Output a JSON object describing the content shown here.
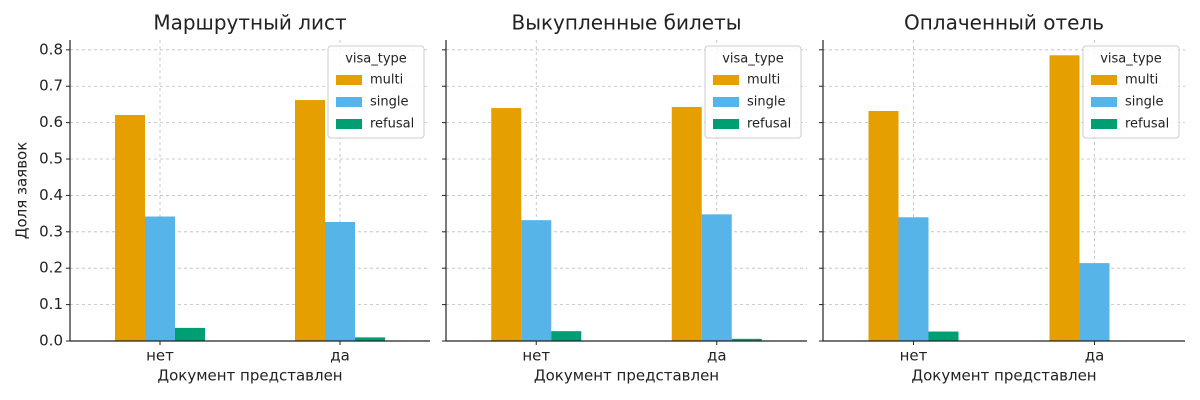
{
  "chart_data": [
    {
      "type": "bar",
      "title": "Маршрутный лист",
      "xlabel": "Документ представлен",
      "ylabel": "Доля заявок",
      "categories": [
        "нет",
        "да"
      ],
      "series": [
        {
          "name": "multi",
          "color": "#E69F00",
          "values": [
            0.621,
            0.662
          ]
        },
        {
          "name": "single",
          "color": "#56B4E9",
          "values": [
            0.342,
            0.327
          ]
        },
        {
          "name": "refusal",
          "color": "#009E73",
          "values": [
            0.036,
            0.01
          ]
        }
      ],
      "ylim": [
        0,
        0.827
      ],
      "yticks": [
        {
          "value": 0,
          "label": "0.0"
        },
        0.1,
        0.2,
        0.3,
        0.4,
        0.5,
        0.6,
        0.7,
        0.8
      ],
      "grid": true,
      "legend_title": "visa_type",
      "legend": "upper right"
    },
    {
      "type": "bar",
      "title": "Выкупленные билеты",
      "xlabel": "Документ представлен",
      "categories": [
        "нет",
        "да"
      ],
      "series": [
        {
          "name": "multi",
          "color": "#E69F00",
          "values": [
            0.64,
            0.643
          ]
        },
        {
          "name": "single",
          "color": "#56B4E9",
          "values": [
            0.332,
            0.348
          ]
        },
        {
          "name": "refusal",
          "color": "#009E73",
          "values": [
            0.027,
            0.006
          ]
        }
      ],
      "ylim": [
        0,
        0.827
      ],
      "yticks": [
        {
          "value": 0,
          "label": "0.0"
        },
        0.1,
        0.2,
        0.3,
        0.4,
        0.5,
        0.6,
        0.7,
        0.8
      ],
      "grid": true,
      "legend_title": "visa_type",
      "legend": "upper right"
    },
    {
      "type": "bar",
      "title": "Оплаченный отель",
      "xlabel": "Документ представлен",
      "categories": [
        "нет",
        "да"
      ],
      "series": [
        {
          "name": "multi",
          "color": "#E69F00",
          "values": [
            0.632,
            0.785
          ]
        },
        {
          "name": "single",
          "color": "#56B4E9",
          "values": [
            0.34,
            0.214
          ]
        },
        {
          "name": "refusal",
          "color": "#009E73",
          "values": [
            0.026,
            0
          ]
        }
      ],
      "ylim": [
        0,
        0.827
      ],
      "yticks": [
        {
          "value": 0,
          "label": "0.0"
        },
        0.1,
        0.2,
        0.3,
        0.4,
        0.5,
        0.6,
        0.7,
        0.8
      ],
      "grid": true,
      "legend_title": "visa_type",
      "legend": "upper right"
    }
  ]
}
